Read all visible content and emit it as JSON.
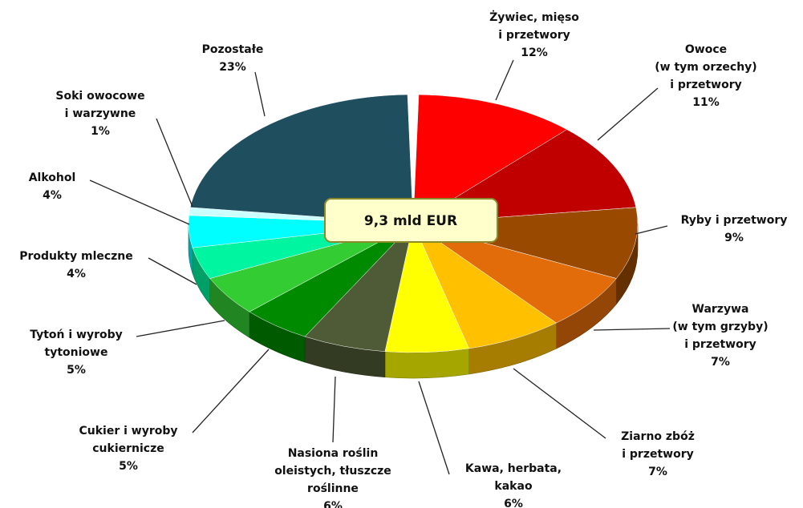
{
  "chart_data": {
    "type": "pie",
    "annotation": "9,3 mld EUR",
    "categories": [
      "Żywiec, mięso\ni przetwory",
      "Owoce\n(w tym orzechy)\ni przetwory",
      "Ryby i przetwory",
      "Warzywa\n(w tym grzyby)\ni przetwory",
      "Ziarno zbóż\ni przetwory",
      "Kawa, herbata,\nkakao",
      "Nasiona roślin\noleistych, tłuszcze\nroślinne",
      "Cukier i wyroby\ncukiernicze",
      "Tytoń i wyroby\ntytoniowe",
      "Produkty mleczne",
      "Alkohol",
      "Soki owocowe\ni warzywne",
      "Pozostałe"
    ],
    "values": [
      12,
      11,
      9,
      7,
      7,
      6,
      6,
      5,
      5,
      4,
      4,
      1,
      23
    ],
    "value_labels": [
      "12%",
      "11%",
      "9%",
      "7%",
      "7%",
      "6%",
      "6%",
      "5%",
      "5%",
      "4%",
      "4%",
      "1%",
      "23%"
    ],
    "colors": [
      "#ff0000",
      "#c00000",
      "#9a4a00",
      "#e36c0a",
      "#ffc000",
      "#ffff00",
      "#4f5a36",
      "#008a00",
      "#33cc33",
      "#00f5a0",
      "#00ffff",
      "#ccffff",
      "#1f4e5f"
    ]
  }
}
